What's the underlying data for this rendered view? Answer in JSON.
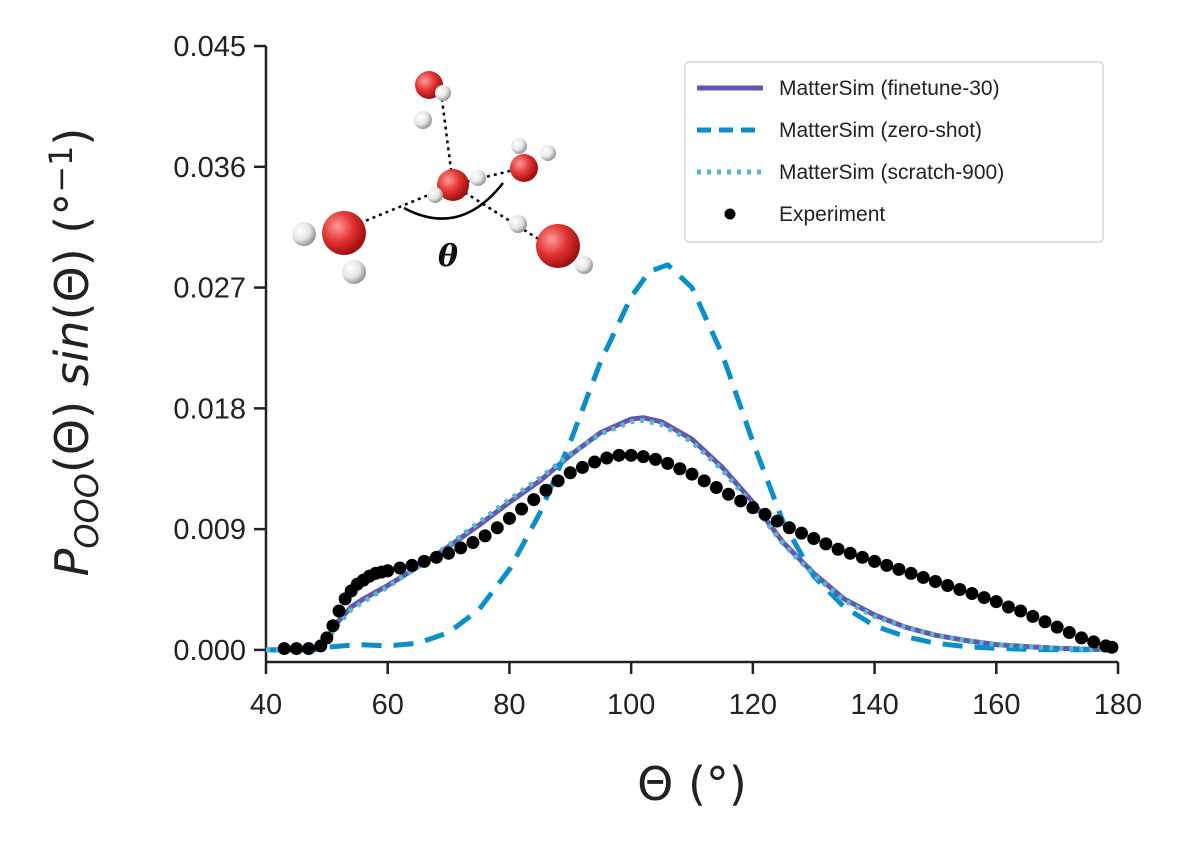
{
  "chart_data": {
    "type": "line",
    "xlabel": "Θ (°)",
    "ylabel_parts": {
      "P": "P",
      "sub": "OOO",
      "mid": "(Θ) ",
      "sin": "sin",
      "tail": "(Θ) (°",
      "exp": "−1",
      "close": ")"
    },
    "xlim": [
      40,
      180
    ],
    "ylim": [
      -0.0009,
      0.045
    ],
    "xticks": [
      40,
      60,
      80,
      100,
      120,
      140,
      160,
      180
    ],
    "xtick_labels": [
      "40",
      "60",
      "80",
      "100",
      "120",
      "140",
      "160",
      "180"
    ],
    "yticks": [
      0.0,
      0.009,
      0.018,
      0.027,
      0.036,
      0.045
    ],
    "ytick_labels": [
      "0.000",
      "0.009",
      "0.018",
      "0.027",
      "0.036",
      "0.045"
    ],
    "legend_position": "top-right",
    "inset_label": "θ",
    "series": [
      {
        "name": "MatterSim (finetune-30)",
        "style": "solid",
        "color": "#6357b0",
        "x": [
          40,
          45,
          48,
          50,
          52,
          54,
          56,
          60,
          65,
          70,
          75,
          80,
          85,
          90,
          95,
          100,
          102,
          105,
          110,
          115,
          120,
          125,
          130,
          135,
          140,
          145,
          150,
          155,
          160,
          165,
          170,
          175,
          179
        ],
        "y": [
          0,
          0,
          0.0001,
          0.0008,
          0.0022,
          0.0032,
          0.0038,
          0.0048,
          0.0062,
          0.0077,
          0.0093,
          0.011,
          0.0126,
          0.0145,
          0.0162,
          0.0172,
          0.0173,
          0.017,
          0.0157,
          0.0136,
          0.011,
          0.008,
          0.0057,
          0.0038,
          0.0026,
          0.0017,
          0.0011,
          0.0007,
          0.0004,
          0.00025,
          0.00012,
          5e-05,
          2e-05
        ]
      },
      {
        "name": "MatterSim (zero-shot)",
        "style": "dashed",
        "color": "#0a8fcb",
        "x": [
          40,
          48,
          50,
          55,
          60,
          65,
          70,
          75,
          80,
          85,
          90,
          95,
          100,
          103,
          106,
          110,
          115,
          120,
          125,
          130,
          135,
          140,
          145,
          150,
          155,
          160,
          165,
          170,
          175,
          179
        ],
        "y": [
          0,
          0,
          0.0002,
          0.0004,
          0.0003,
          0.0005,
          0.0013,
          0.003,
          0.006,
          0.0102,
          0.0155,
          0.0215,
          0.0263,
          0.0282,
          0.0287,
          0.027,
          0.022,
          0.0155,
          0.0095,
          0.0055,
          0.0032,
          0.0018,
          0.001,
          0.0005,
          0.00025,
          0.00012,
          5e-05,
          2e-05,
          1e-05,
          0
        ]
      },
      {
        "name": "MatterSim (scratch-900)",
        "style": "dotted",
        "color": "#56b9c9",
        "x": [
          40,
          45,
          48,
          50,
          52,
          54,
          56,
          60,
          65,
          70,
          75,
          80,
          85,
          90,
          95,
          100,
          102,
          105,
          110,
          115,
          120,
          125,
          130,
          135,
          140,
          145,
          150,
          155,
          160,
          165,
          170,
          175,
          179
        ],
        "y": [
          0,
          0,
          0.0001,
          0.0007,
          0.002,
          0.003,
          0.0036,
          0.0047,
          0.0062,
          0.0078,
          0.0095,
          0.0112,
          0.0128,
          0.0146,
          0.0161,
          0.017,
          0.0171,
          0.0168,
          0.0155,
          0.0134,
          0.0108,
          0.0079,
          0.0056,
          0.0037,
          0.0025,
          0.0017,
          0.0011,
          0.0007,
          0.0004,
          0.00025,
          0.00012,
          5e-05,
          2e-05
        ]
      },
      {
        "name": "Experiment",
        "style": "markers",
        "color": "#000000",
        "x": [
          43,
          45,
          47,
          49,
          50,
          51,
          52,
          53,
          54,
          55,
          56,
          57,
          58,
          59,
          60,
          62,
          64,
          66,
          68,
          70,
          72,
          74,
          76,
          78,
          80,
          82,
          84,
          86,
          88,
          90,
          92,
          94,
          96,
          98,
          100,
          102,
          104,
          106,
          108,
          110,
          112,
          114,
          116,
          118,
          120,
          122,
          124,
          126,
          128,
          130,
          132,
          134,
          136,
          138,
          140,
          142,
          144,
          146,
          148,
          150,
          152,
          154,
          156,
          158,
          160,
          162,
          164,
          166,
          168,
          170,
          172,
          174,
          176,
          178,
          179
        ],
        "y": [
          0.0001,
          0.0001,
          0.0001,
          0.0003,
          0.0009,
          0.0018,
          0.0029,
          0.0038,
          0.0044,
          0.0049,
          0.0052,
          0.0055,
          0.0057,
          0.0058,
          0.0059,
          0.0061,
          0.0063,
          0.0066,
          0.0069,
          0.0072,
          0.0076,
          0.008,
          0.0085,
          0.0091,
          0.0098,
          0.0105,
          0.0112,
          0.0119,
          0.0126,
          0.0132,
          0.0136,
          0.014,
          0.0143,
          0.0145,
          0.0145,
          0.0144,
          0.0142,
          0.0139,
          0.0135,
          0.0131,
          0.0126,
          0.0121,
          0.0116,
          0.0111,
          0.0106,
          0.0101,
          0.0096,
          0.0091,
          0.0087,
          0.0083,
          0.0079,
          0.0075,
          0.0072,
          0.0069,
          0.0066,
          0.0063,
          0.006,
          0.0057,
          0.0054,
          0.0051,
          0.0048,
          0.0045,
          0.0042,
          0.0039,
          0.0036,
          0.0032,
          0.0029,
          0.0025,
          0.0021,
          0.0017,
          0.0013,
          0.0009,
          0.0006,
          0.0003,
          0.0002
        ]
      }
    ]
  }
}
